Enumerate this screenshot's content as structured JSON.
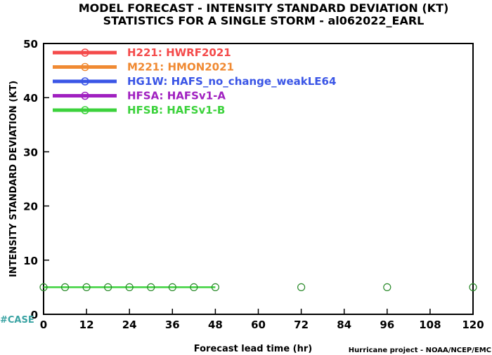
{
  "chart_data": {
    "type": "line",
    "title": "MODEL FORECAST - INTENSITY STANDARD DEVIATION (KT)",
    "subtitle": "STATISTICS FOR A SINGLE STORM - al062022_EARL",
    "xlabel": "Forecast lead time (hr)",
    "ylabel": "INTENSITY STANDARD DEVIATION (KT)",
    "xlim": [
      0,
      120
    ],
    "ylim": [
      0,
      50
    ],
    "x_ticks": [
      0,
      12,
      24,
      36,
      48,
      60,
      72,
      84,
      96,
      108,
      120
    ],
    "y_ticks": [
      0,
      10,
      20,
      30,
      40,
      50
    ],
    "grid": false,
    "legend_position": "top-left",
    "series": [
      {
        "name": "H221: HWRF2021",
        "color": "#f44a4a",
        "x": [],
        "y": []
      },
      {
        "name": "M221: HMON2021",
        "color": "#f08a33",
        "x": [],
        "y": []
      },
      {
        "name": "HG1W: HAFS_no_change_weakLE64",
        "color": "#3a55e6",
        "x": [],
        "y": []
      },
      {
        "name": "HFSA: HAFSv1-A",
        "color": "#a020c0",
        "x": [],
        "y": []
      },
      {
        "name": "HFSB: HAFSv1-B",
        "color": "#3cd23c",
        "x": [
          0,
          6,
          12,
          18,
          24,
          30,
          36,
          42,
          48
        ],
        "y": [
          5,
          5,
          5,
          5,
          5,
          5,
          5,
          5,
          5
        ]
      }
    ],
    "case_markers": {
      "color": "#2a8a2a",
      "x": [
        0,
        6,
        12,
        18,
        24,
        30,
        36,
        42,
        48,
        72,
        96,
        120
      ],
      "y": [
        5,
        5,
        5,
        5,
        5,
        5,
        5,
        5,
        5,
        5,
        5,
        5
      ]
    }
  },
  "labels": {
    "case": "#CASE",
    "footer": "Hurricane project - NOAA/NCEP/EMC"
  },
  "colors": {
    "case_label": "#3aa3a3"
  }
}
